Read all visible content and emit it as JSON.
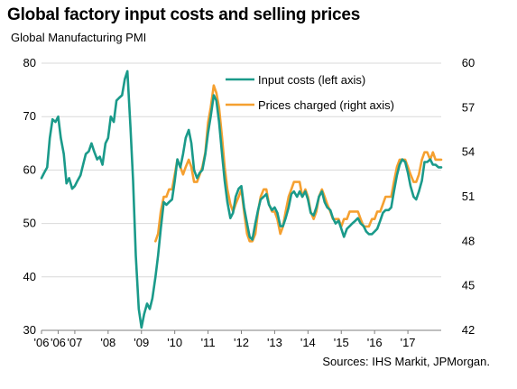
{
  "title": "Global factory input costs and selling prices",
  "subtitle": "Global Manufacturing PMI",
  "source": "Sources: IHS Markit, JPMorgan.",
  "colors": {
    "input_costs": "#1a9a8a",
    "prices_charged": "#f5a030",
    "grid": "#d9d9d9",
    "axis": "#7f7f7f"
  },
  "chart_data": {
    "type": "line",
    "title": "Global factory input costs and selling prices",
    "ylabel": "Global Manufacturing PMI",
    "x_tick_labels": [
      "'06",
      "'06",
      "'07",
      "'08",
      "'09",
      "'10",
      "'11",
      "'12",
      "'13",
      "'14",
      "'15",
      "'16",
      "'17"
    ],
    "x_tick_years": [
      2006.0,
      2006.5,
      2007.0,
      2008.0,
      2009.0,
      2010.0,
      2011.0,
      2012.0,
      2013.0,
      2014.0,
      2015.0,
      2016.0,
      2017.0
    ],
    "xlim": [
      2006.0,
      2018.0
    ],
    "ylim_left": [
      30,
      80
    ],
    "y_ticks_left": [
      30,
      40,
      50,
      60,
      70,
      80
    ],
    "ylim_right": [
      42,
      60
    ],
    "y_ticks_right": [
      42,
      45,
      48,
      51,
      54,
      57,
      60
    ],
    "grid": true,
    "legend_position": "top-right",
    "series": [
      {
        "name": "Input costs (left axis)",
        "axis": "left",
        "points": [
          [
            2006.0,
            58.5
          ],
          [
            2006.08,
            59.5
          ],
          [
            2006.17,
            60.5
          ],
          [
            2006.25,
            66
          ],
          [
            2006.33,
            69.5
          ],
          [
            2006.42,
            69
          ],
          [
            2006.5,
            70
          ],
          [
            2006.58,
            66
          ],
          [
            2006.67,
            63
          ],
          [
            2006.75,
            57.5
          ],
          [
            2006.83,
            58.5
          ],
          [
            2006.92,
            56.5
          ],
          [
            2007.0,
            57
          ],
          [
            2007.08,
            58
          ],
          [
            2007.17,
            59
          ],
          [
            2007.25,
            61
          ],
          [
            2007.33,
            63
          ],
          [
            2007.42,
            63.5
          ],
          [
            2007.5,
            65
          ],
          [
            2007.58,
            63.5
          ],
          [
            2007.67,
            62
          ],
          [
            2007.75,
            62.5
          ],
          [
            2007.83,
            61
          ],
          [
            2007.92,
            65
          ],
          [
            2008.0,
            66
          ],
          [
            2008.08,
            70
          ],
          [
            2008.17,
            69
          ],
          [
            2008.25,
            73
          ],
          [
            2008.33,
            73.5
          ],
          [
            2008.42,
            74
          ],
          [
            2008.5,
            77
          ],
          [
            2008.58,
            78.5
          ],
          [
            2008.67,
            68
          ],
          [
            2008.75,
            58
          ],
          [
            2008.83,
            44
          ],
          [
            2008.92,
            34
          ],
          [
            2009.0,
            30.5
          ],
          [
            2009.08,
            33
          ],
          [
            2009.17,
            35
          ],
          [
            2009.25,
            34
          ],
          [
            2009.33,
            36
          ],
          [
            2009.42,
            40
          ],
          [
            2009.5,
            44
          ],
          [
            2009.58,
            49
          ],
          [
            2009.67,
            54
          ],
          [
            2009.75,
            53.5
          ],
          [
            2009.83,
            54
          ],
          [
            2009.92,
            54.5
          ],
          [
            2010.0,
            58
          ],
          [
            2010.08,
            62
          ],
          [
            2010.17,
            60.5
          ],
          [
            2010.25,
            63
          ],
          [
            2010.33,
            66
          ],
          [
            2010.42,
            67.5
          ],
          [
            2010.5,
            65
          ],
          [
            2010.58,
            60
          ],
          [
            2010.67,
            58.5
          ],
          [
            2010.75,
            59.5
          ],
          [
            2010.83,
            60
          ],
          [
            2010.92,
            63
          ],
          [
            2011.0,
            67
          ],
          [
            2011.08,
            70
          ],
          [
            2011.17,
            74
          ],
          [
            2011.25,
            73
          ],
          [
            2011.33,
            69
          ],
          [
            2011.42,
            63
          ],
          [
            2011.5,
            58
          ],
          [
            2011.58,
            54
          ],
          [
            2011.67,
            51
          ],
          [
            2011.75,
            52
          ],
          [
            2011.83,
            55
          ],
          [
            2011.92,
            56.5
          ],
          [
            2012.0,
            57
          ],
          [
            2012.08,
            53
          ],
          [
            2012.17,
            50
          ],
          [
            2012.25,
            47.5
          ],
          [
            2012.33,
            47
          ],
          [
            2012.42,
            50
          ],
          [
            2012.5,
            52.5
          ],
          [
            2012.58,
            54.5
          ],
          [
            2012.67,
            55
          ],
          [
            2012.75,
            55.5
          ],
          [
            2012.83,
            53.5
          ],
          [
            2012.92,
            52.5
          ],
          [
            2013.0,
            53
          ],
          [
            2013.08,
            52
          ],
          [
            2013.17,
            49.5
          ],
          [
            2013.25,
            49.5
          ],
          [
            2013.33,
            51
          ],
          [
            2013.42,
            53
          ],
          [
            2013.5,
            55.5
          ],
          [
            2013.58,
            56
          ],
          [
            2013.67,
            55
          ],
          [
            2013.75,
            56
          ],
          [
            2013.83,
            55
          ],
          [
            2013.92,
            56
          ],
          [
            2014.0,
            54.5
          ],
          [
            2014.08,
            52
          ],
          [
            2014.17,
            51.5
          ],
          [
            2014.25,
            53
          ],
          [
            2014.33,
            55
          ],
          [
            2014.42,
            56
          ],
          [
            2014.5,
            54
          ],
          [
            2014.58,
            53
          ],
          [
            2014.67,
            52.5
          ],
          [
            2014.75,
            51
          ],
          [
            2014.83,
            50
          ],
          [
            2014.92,
            50.5
          ],
          [
            2015.0,
            49
          ],
          [
            2015.08,
            47.5
          ],
          [
            2015.17,
            49
          ],
          [
            2015.25,
            49.5
          ],
          [
            2015.33,
            50
          ],
          [
            2015.42,
            50.5
          ],
          [
            2015.5,
            51
          ],
          [
            2015.58,
            50
          ],
          [
            2015.67,
            49.5
          ],
          [
            2015.75,
            48.5
          ],
          [
            2015.83,
            48
          ],
          [
            2015.92,
            48
          ],
          [
            2016.0,
            48.5
          ],
          [
            2016.08,
            49
          ],
          [
            2016.17,
            50.5
          ],
          [
            2016.25,
            52
          ],
          [
            2016.33,
            52.5
          ],
          [
            2016.42,
            52.5
          ],
          [
            2016.5,
            53
          ],
          [
            2016.58,
            56
          ],
          [
            2016.67,
            59
          ],
          [
            2016.75,
            61
          ],
          [
            2016.83,
            62
          ],
          [
            2016.92,
            61.5
          ],
          [
            2017.0,
            59.5
          ],
          [
            2017.08,
            57
          ],
          [
            2017.17,
            55
          ],
          [
            2017.25,
            54.5
          ],
          [
            2017.33,
            56
          ],
          [
            2017.42,
            58
          ],
          [
            2017.5,
            61.5
          ],
          [
            2017.58,
            61.5
          ],
          [
            2017.67,
            62
          ],
          [
            2017.75,
            61
          ],
          [
            2017.83,
            61
          ],
          [
            2017.92,
            60.5
          ],
          [
            2018.0,
            60.5
          ]
        ]
      },
      {
        "name": "Prices charged (right axis)",
        "axis": "right",
        "points": [
          [
            2009.42,
            48
          ],
          [
            2009.5,
            48.5
          ],
          [
            2009.58,
            50
          ],
          [
            2009.67,
            51
          ],
          [
            2009.75,
            51
          ],
          [
            2009.83,
            51.5
          ],
          [
            2009.92,
            51.5
          ],
          [
            2010.0,
            52.5
          ],
          [
            2010.08,
            53.5
          ],
          [
            2010.17,
            53
          ],
          [
            2010.25,
            52.5
          ],
          [
            2010.33,
            53
          ],
          [
            2010.42,
            53.5
          ],
          [
            2010.5,
            53
          ],
          [
            2010.58,
            52
          ],
          [
            2010.67,
            52
          ],
          [
            2010.75,
            52.5
          ],
          [
            2010.83,
            53
          ],
          [
            2010.92,
            54
          ],
          [
            2011.0,
            56
          ],
          [
            2011.08,
            57
          ],
          [
            2011.17,
            58.5
          ],
          [
            2011.25,
            58
          ],
          [
            2011.33,
            57
          ],
          [
            2011.42,
            55
          ],
          [
            2011.5,
            53
          ],
          [
            2011.58,
            51.5
          ],
          [
            2011.67,
            50.5
          ],
          [
            2011.75,
            50
          ],
          [
            2011.83,
            50.5
          ],
          [
            2011.92,
            51
          ],
          [
            2012.0,
            51.5
          ],
          [
            2012.08,
            50
          ],
          [
            2012.17,
            48.5
          ],
          [
            2012.25,
            48
          ],
          [
            2012.33,
            48
          ],
          [
            2012.42,
            48.5
          ],
          [
            2012.5,
            50
          ],
          [
            2012.58,
            51
          ],
          [
            2012.67,
            51.5
          ],
          [
            2012.75,
            51.5
          ],
          [
            2012.83,
            50.5
          ],
          [
            2012.92,
            50
          ],
          [
            2013.0,
            50
          ],
          [
            2013.08,
            49.5
          ],
          [
            2013.17,
            48.5
          ],
          [
            2013.25,
            49
          ],
          [
            2013.33,
            50
          ],
          [
            2013.42,
            51
          ],
          [
            2013.5,
            51.5
          ],
          [
            2013.58,
            52
          ],
          [
            2013.67,
            52
          ],
          [
            2013.75,
            52
          ],
          [
            2013.83,
            51
          ],
          [
            2013.92,
            51.5
          ],
          [
            2014.0,
            51
          ],
          [
            2014.08,
            50
          ],
          [
            2014.17,
            49.5
          ],
          [
            2014.25,
            50
          ],
          [
            2014.33,
            51
          ],
          [
            2014.42,
            51.5
          ],
          [
            2014.5,
            51
          ],
          [
            2014.58,
            50.5
          ],
          [
            2014.67,
            50
          ],
          [
            2014.75,
            49.5
          ],
          [
            2014.83,
            49.5
          ],
          [
            2014.92,
            49.5
          ],
          [
            2015.0,
            49
          ],
          [
            2015.08,
            49.5
          ],
          [
            2015.17,
            49.5
          ],
          [
            2015.25,
            50
          ],
          [
            2015.33,
            50
          ],
          [
            2015.42,
            50
          ],
          [
            2015.5,
            50
          ],
          [
            2015.58,
            49.5
          ],
          [
            2015.67,
            49
          ],
          [
            2015.75,
            49
          ],
          [
            2015.83,
            49
          ],
          [
            2015.92,
            49.5
          ],
          [
            2016.0,
            49.5
          ],
          [
            2016.08,
            50
          ],
          [
            2016.17,
            50
          ],
          [
            2016.25,
            50.5
          ],
          [
            2016.33,
            51
          ],
          [
            2016.42,
            51
          ],
          [
            2016.5,
            51
          ],
          [
            2016.58,
            52
          ],
          [
            2016.67,
            53
          ],
          [
            2016.75,
            53.5
          ],
          [
            2016.83,
            53.5
          ],
          [
            2016.92,
            53.5
          ],
          [
            2017.0,
            53
          ],
          [
            2017.08,
            52.5
          ],
          [
            2017.17,
            52
          ],
          [
            2017.25,
            52
          ],
          [
            2017.33,
            52.5
          ],
          [
            2017.42,
            53.5
          ],
          [
            2017.5,
            54
          ],
          [
            2017.58,
            54
          ],
          [
            2017.67,
            53.5
          ],
          [
            2017.75,
            54
          ],
          [
            2017.83,
            53.5
          ],
          [
            2017.92,
            53.5
          ],
          [
            2018.0,
            53.5
          ]
        ]
      }
    ]
  }
}
